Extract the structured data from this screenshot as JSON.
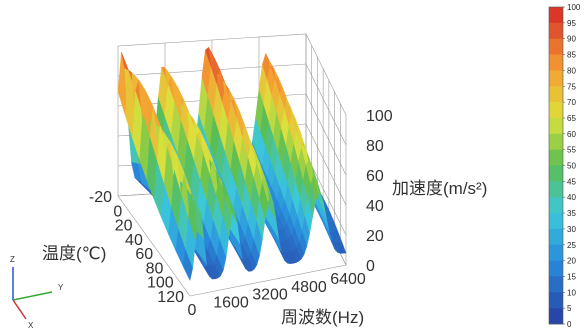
{
  "chart_data": {
    "type": "surface",
    "title": "",
    "x_axis": {
      "label": "周波数(Hz)",
      "ticks": [
        "0",
        "1600",
        "3200",
        "4800",
        "6400"
      ],
      "range": [
        0,
        6400
      ]
    },
    "y_axis": {
      "label": "温度(℃)",
      "ticks": [
        "-20",
        "0",
        "20",
        "40",
        "60",
        "80",
        "100",
        "120"
      ],
      "range": [
        -20,
        120
      ]
    },
    "z_axis": {
      "label": "加速度(m/s²)",
      "ticks": [
        "0",
        "20",
        "40",
        "60",
        "80",
        "100"
      ],
      "range": [
        0,
        100
      ]
    },
    "colorbar": {
      "min": 0,
      "max": 100,
      "step": 5,
      "ticks": [
        "100",
        "95",
        "90",
        "85",
        "80",
        "75",
        "70",
        "65",
        "60",
        "55",
        "50",
        "45",
        "40",
        "35",
        "30",
        "25",
        "20",
        "15",
        "10",
        "5",
        "0"
      ]
    },
    "resonance_ridges": [
      {
        "freq_hz": 400,
        "peak_level": 96
      },
      {
        "freq_hz": 1800,
        "peak_level": 86
      },
      {
        "freq_hz": 3300,
        "peak_level": 96
      },
      {
        "freq_hz": 5300,
        "peak_level": 88
      }
    ],
    "grid": true
  },
  "triad": {
    "z": "Z",
    "y": "Y",
    "x": "X"
  }
}
